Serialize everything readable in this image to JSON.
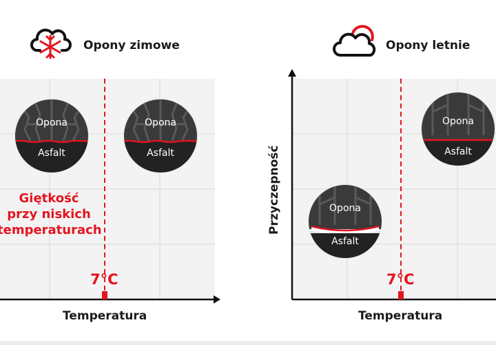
{
  "left": {
    "title": "Opony zimowe",
    "icon": "cloud-snowflake-icon",
    "tire_top": "Opona",
    "tire_bottom": "Asfalt",
    "note_lines": [
      "Giętkość",
      "przy niskich",
      "temperaturach"
    ],
    "temp_marker": "7°C",
    "x_axis_label": "Temperatura"
  },
  "right": {
    "title": "Opony letnie",
    "icon": "cloud-sun-icon",
    "tire_top": "Opona",
    "tire_bottom": "Asfalt",
    "temp_marker": "7°C",
    "x_axis_label": "Temperatura",
    "y_axis_label": "Przyczepność"
  },
  "colors": {
    "accent": "#e3141f",
    "tire": "#3a3a3a",
    "road": "#222222",
    "grid": "#d8d8d8",
    "panel": "#f3f3f3"
  }
}
